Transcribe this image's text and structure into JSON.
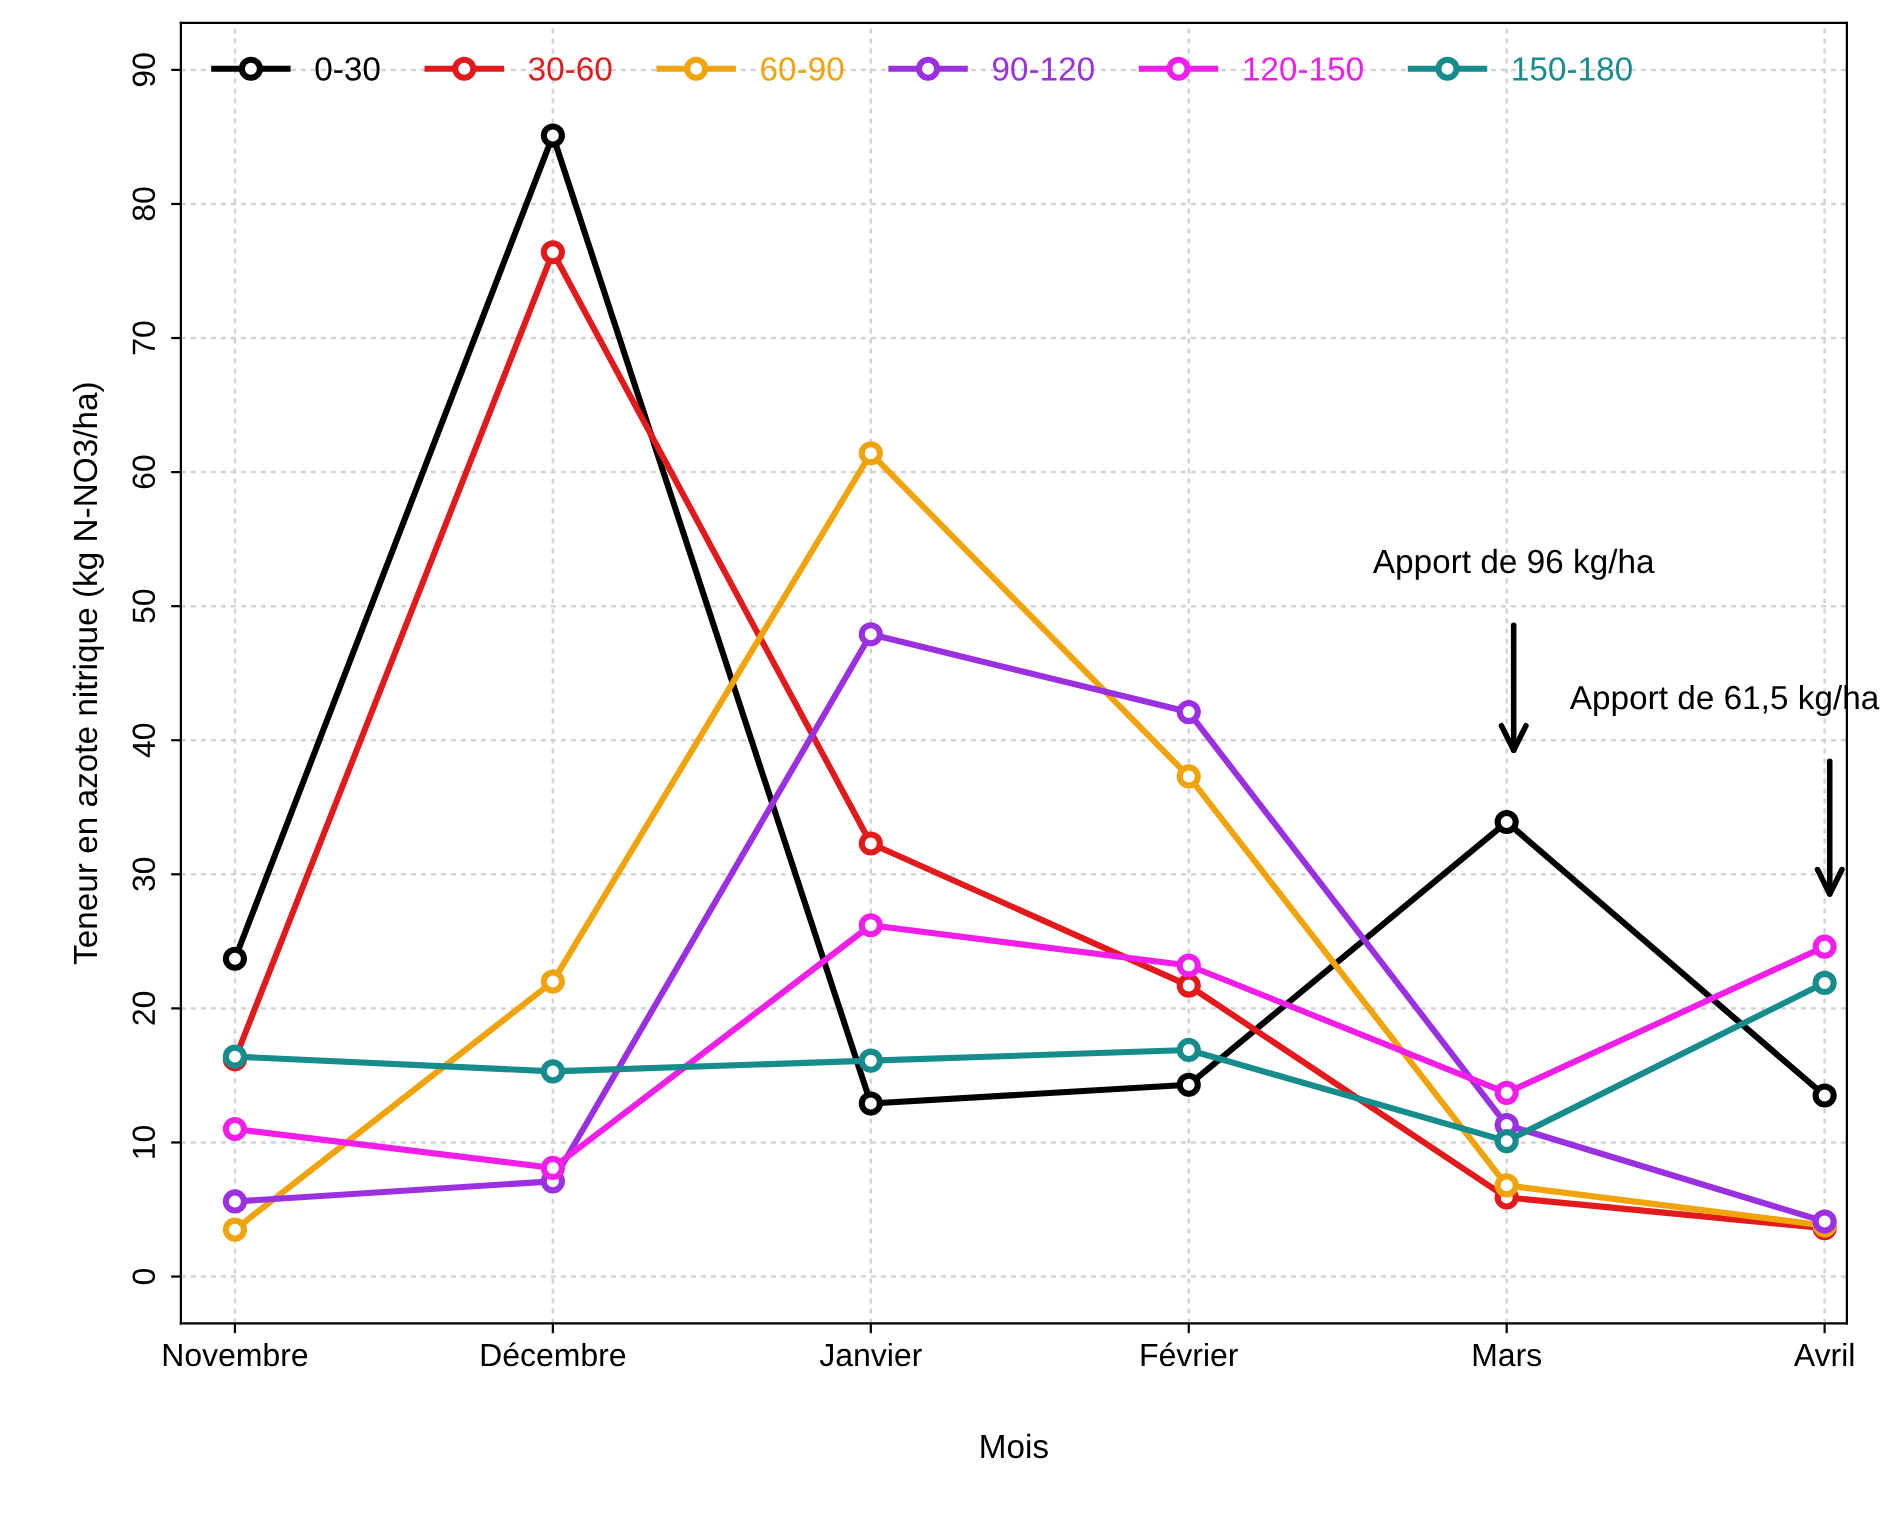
{
  "chart_data": {
    "type": "line",
    "xlabel": "Mois",
    "ylabel": "Teneur en azote nitrique (kg N-NO3/ha)",
    "categories": [
      "Novembre",
      "Décembre",
      "Janvier",
      "Février",
      "Mars",
      "Avril"
    ],
    "series": [
      {
        "name": "0-30",
        "color": "#000000",
        "values": [
          23.7,
          85.1,
          12.9,
          14.3,
          33.9,
          13.5
        ]
      },
      {
        "name": "30-60",
        "color": "#e31a1c",
        "values": [
          16.2,
          76.4,
          32.3,
          21.7,
          5.9,
          3.6
        ]
      },
      {
        "name": "60-90",
        "color": "#f0a30a",
        "values": [
          3.5,
          22.0,
          61.4,
          37.3,
          6.8,
          3.8
        ]
      },
      {
        "name": "90-120",
        "color": "#9b30e0",
        "values": [
          5.6,
          7.1,
          47.9,
          42.1,
          11.3,
          4.1
        ]
      },
      {
        "name": "120-150",
        "color": "#f01ee8",
        "values": [
          11.0,
          8.1,
          26.2,
          23.2,
          13.7,
          24.6
        ]
      },
      {
        "name": "150-180",
        "color": "#168c8c",
        "values": [
          16.4,
          15.3,
          16.1,
          16.9,
          10.1,
          21.9
        ]
      }
    ],
    "ylim": [
      -3.5,
      93.5
    ],
    "yticks": [
      0,
      10,
      20,
      30,
      40,
      50,
      60,
      70,
      80,
      90
    ],
    "grid": true,
    "legend": "top left",
    "marker": "circle",
    "line_style": "solid",
    "annotations": [
      "Apport de 96 kg/ha",
      "Apport de 61,5 kg/ha"
    ]
  }
}
